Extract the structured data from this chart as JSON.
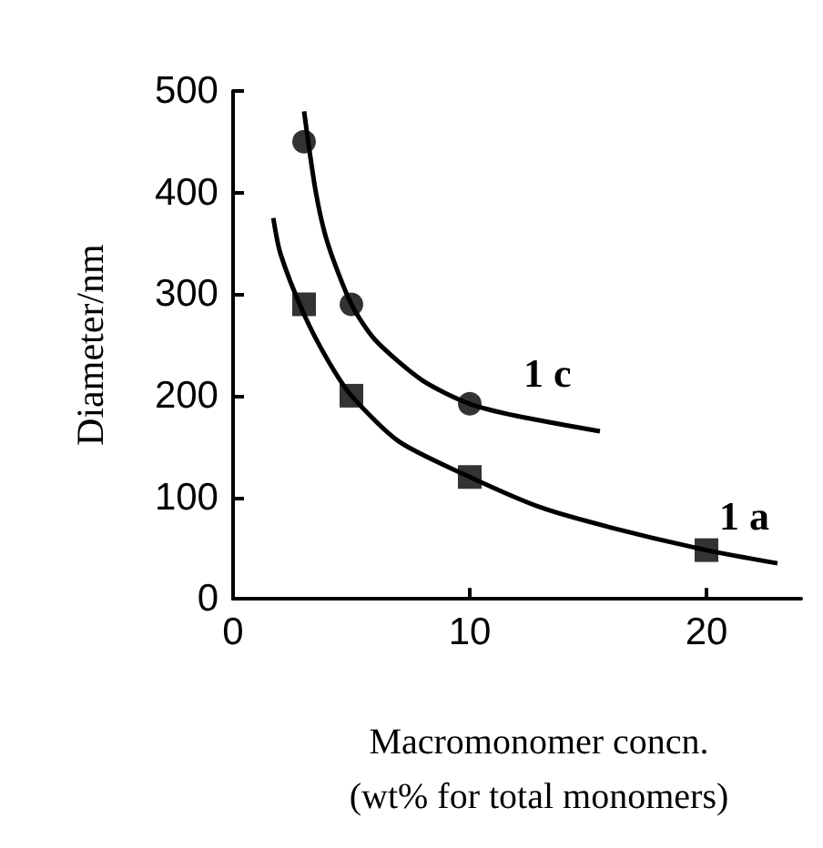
{
  "chart_data": {
    "type": "scatter",
    "xlabel": "Macromonomer concn.\n(wt% for total monomers)",
    "ylabel": "Diameter/nm",
    "xlim": [
      0,
      24
    ],
    "xticks": [
      0,
      10,
      20
    ],
    "ylim": [
      0,
      500
    ],
    "yticks": [
      0,
      100,
      200,
      300,
      400,
      500
    ],
    "grid": false,
    "series": [
      {
        "marker": "circle",
        "color": "#000000",
        "x": [
          3,
          5,
          10
        ],
        "values": [
          450,
          290,
          192
        ]
      },
      {
        "marker": "square",
        "color": "#000000",
        "x": [
          3,
          5,
          10,
          20
        ],
        "values": [
          290,
          200,
          120,
          48
        ]
      },
      {
        "type": "line",
        "name": "1 c",
        "marker": "none",
        "color": "#000000",
        "x": [
          3,
          3.5,
          4,
          5,
          6,
          8,
          10,
          12,
          15.5
        ],
        "values": [
          480,
          400,
          350,
          290,
          255,
          215,
          192,
          180,
          165
        ]
      },
      {
        "type": "line",
        "name": "1 a",
        "marker": "none",
        "color": "#000000",
        "x": [
          1.7,
          2,
          3,
          4,
          5,
          7,
          10,
          13,
          16,
          20,
          23
        ],
        "values": [
          375,
          340,
          280,
          235,
          200,
          155,
          120,
          90,
          70,
          48,
          35
        ]
      }
    ]
  }
}
